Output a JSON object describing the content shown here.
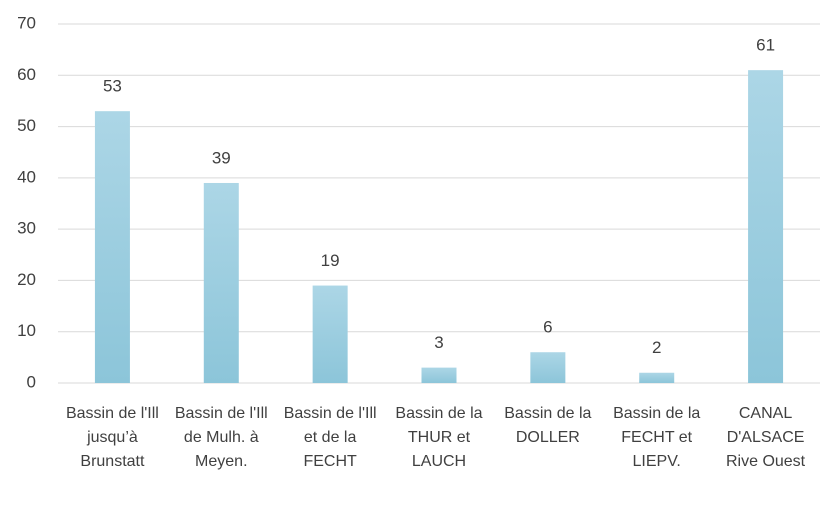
{
  "chart_data": {
    "type": "bar",
    "categories": [
      "Bassin de l'Ill jusqu’à Brunstatt",
      "Bassin de l'Ill de Mulh. à Meyen.",
      "Bassin de l'Ill et de la FECHT",
      "Bassin de la THUR et LAUCH",
      "Bassin de la DOLLER",
      "Bassin de la FECHT et LIEPV.",
      "CANAL D'ALSACE Rive Ouest"
    ],
    "values": [
      53,
      39,
      19,
      3,
      6,
      2,
      61
    ],
    "color": "#9dcee0",
    "ylim": [
      0,
      70
    ],
    "yticks": [
      0,
      10,
      20,
      30,
      40,
      50,
      60,
      70
    ],
    "grid": true
  }
}
